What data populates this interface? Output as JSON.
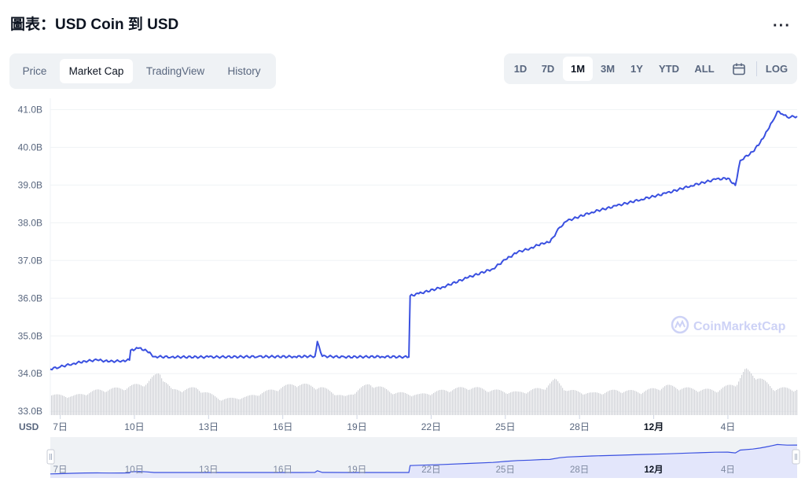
{
  "header": {
    "title": "圖表：USD Coin 到 USD",
    "more_label": "···"
  },
  "tabs": [
    {
      "label": "Price"
    },
    {
      "label": "Market Cap"
    },
    {
      "label": "TradingView"
    },
    {
      "label": "History"
    }
  ],
  "active_tab": "Market Cap",
  "ranges": [
    {
      "label": "1D"
    },
    {
      "label": "7D"
    },
    {
      "label": "1M"
    },
    {
      "label": "3M"
    },
    {
      "label": "1Y"
    },
    {
      "label": "YTD"
    },
    {
      "label": "ALL"
    }
  ],
  "active_range": "1M",
  "log_label": "LOG",
  "watermark": "CoinMarketCap",
  "currency_label": "USD",
  "colors": {
    "line": "#3a50e0",
    "volume": "#d1d3d8",
    "navigator_fill": "#e3e6fb",
    "grid": "#eff2f5",
    "axis_text": "#58667e"
  },
  "chart_data": {
    "type": "line",
    "title": "",
    "xlabel": "",
    "ylabel": "",
    "y_unit": "B",
    "ylim": [
      32.9,
      41.3
    ],
    "y_ticks": [
      33.0,
      34.0,
      35.0,
      36.0,
      37.0,
      38.0,
      39.0,
      40.0,
      41.0
    ],
    "y_tick_labels": [
      "33.0B",
      "34.0B",
      "35.0B",
      "36.0B",
      "37.0B",
      "38.0B",
      "39.0B",
      "40.0B",
      "41.0B"
    ],
    "x_range": [
      6.6,
      36.8
    ],
    "x_ticks": [
      7,
      10,
      13,
      16,
      19,
      22,
      25,
      28,
      31,
      34
    ],
    "x_tick_labels": [
      "7日",
      "10日",
      "13日",
      "16日",
      "19日",
      "22日",
      "25日",
      "28日",
      "12月",
      "4日"
    ],
    "grid": true,
    "series": [
      {
        "x": [
          6.6,
          7.0,
          7.5,
          8.0,
          8.5,
          9.0,
          9.5,
          9.8,
          9.85,
          10.2,
          10.5,
          10.8,
          11.5,
          13.0,
          15.0,
          16.5,
          17.3,
          17.4,
          17.6,
          18.5,
          20.0,
          21.1,
          21.15,
          21.5,
          22.5,
          23.5,
          24.5,
          25.0,
          25.5,
          26.0,
          26.5,
          26.8,
          27.2,
          27.5,
          28.5,
          29.5,
          30.5,
          31.5,
          32.5,
          33.5,
          34.0,
          34.3,
          34.5,
          35.0,
          35.3,
          35.6,
          35.8,
          36.0,
          36.2,
          36.4,
          36.8
        ],
        "values": [
          34.12,
          34.18,
          34.26,
          34.33,
          34.36,
          34.32,
          34.34,
          34.36,
          34.62,
          34.68,
          34.6,
          34.45,
          34.44,
          34.44,
          34.45,
          34.45,
          34.46,
          34.85,
          34.46,
          34.44,
          34.45,
          34.44,
          36.06,
          36.12,
          36.3,
          36.55,
          36.78,
          37.02,
          37.22,
          37.32,
          37.46,
          37.48,
          37.88,
          38.05,
          38.28,
          38.45,
          38.62,
          38.78,
          38.98,
          39.15,
          39.18,
          38.99,
          39.65,
          39.88,
          40.12,
          40.45,
          40.68,
          40.95,
          40.88,
          40.8,
          40.82
        ]
      }
    ],
    "volume": {
      "x": [
        6.6,
        7.5,
        8.5,
        9.5,
        10.5,
        11.0,
        11.5,
        12.5,
        13.5,
        14.5,
        15.5,
        16.5,
        17.5,
        18.5,
        19.5,
        20.5,
        21.5,
        22.5,
        23.5,
        24.5,
        25.5,
        26.5,
        27.0,
        27.5,
        28.5,
        29.5,
        30.5,
        31.5,
        32.5,
        33.5,
        34.3,
        34.7,
        35.2,
        35.8,
        36.8
      ],
      "values": [
        0.45,
        0.42,
        0.55,
        0.6,
        0.72,
        0.95,
        0.55,
        0.6,
        0.35,
        0.4,
        0.55,
        0.7,
        0.62,
        0.4,
        0.7,
        0.5,
        0.45,
        0.55,
        0.62,
        0.55,
        0.5,
        0.6,
        0.78,
        0.55,
        0.48,
        0.55,
        0.52,
        0.65,
        0.58,
        0.55,
        0.7,
        1.0,
        0.85,
        0.6,
        0.58
      ]
    },
    "navigator_labels": [
      "7日",
      "10日",
      "13日",
      "16日",
      "19日",
      "22日",
      "25日",
      "28日",
      "12月",
      "4日"
    ]
  }
}
